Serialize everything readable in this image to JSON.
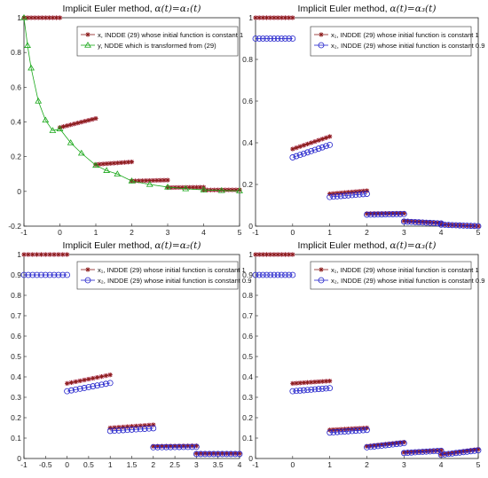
{
  "chart_data": [
    {
      "type": "scatter",
      "title_main": "Implicit Euler method, ",
      "title_math": "α(t)=α₁(t)",
      "xlim": [
        -1,
        5
      ],
      "ylim": [
        -0.2,
        1
      ],
      "xticks": [
        "-1",
        "0",
        "1",
        "2",
        "3",
        "4",
        "5"
      ],
      "yticks": [
        "-0.2",
        "0",
        "0.2",
        "0.4",
        "0.6",
        "0.8",
        "1"
      ],
      "legend_position": "top-right",
      "legend": [
        "x, INDDE (29) whose initial function is constant 1",
        "y, NDDE which is transformed from (29)"
      ],
      "series": [
        {
          "name": "x, INDDE (29) whose initial function is constant 1",
          "color": "#8b1a1a",
          "marker": "star",
          "segments": [
            {
              "x0": -1,
              "x1": 0,
              "y0": 1.0,
              "y1": 1.0
            },
            {
              "x0": 0,
              "x1": 1,
              "y0": 0.368,
              "y1": 0.42
            },
            {
              "x0": 1,
              "x1": 2,
              "y0": 0.155,
              "y1": 0.17
            },
            {
              "x0": 2,
              "x1": 3,
              "y0": 0.06,
              "y1": 0.065
            },
            {
              "x0": 3,
              "x1": 4,
              "y0": 0.022,
              "y1": 0.024
            },
            {
              "x0": 4,
              "x1": 5,
              "y0": 0.008,
              "y1": 0.009
            }
          ]
        },
        {
          "name": "y, NDDE which is transformed from (29)",
          "color": "#1aa81a",
          "marker": "triangle",
          "points": [
            [
              -1,
              1.0
            ],
            [
              -0.9,
              0.84
            ],
            [
              -0.8,
              0.71
            ],
            [
              -0.6,
              0.52
            ],
            [
              -0.4,
              0.41
            ],
            [
              -0.2,
              0.35
            ],
            [
              0,
              0.36
            ],
            [
              0.3,
              0.28
            ],
            [
              0.6,
              0.22
            ],
            [
              1,
              0.15
            ],
            [
              1.3,
              0.12
            ],
            [
              1.6,
              0.1
            ],
            [
              2,
              0.06
            ],
            [
              2.5,
              0.04
            ],
            [
              3,
              0.025
            ],
            [
              3.5,
              0.015
            ],
            [
              4,
              0.009
            ],
            [
              4.5,
              0.005
            ],
            [
              5,
              0.003
            ]
          ]
        }
      ]
    },
    {
      "type": "scatter",
      "title_main": "Implicit Euler method, ",
      "title_math": "α(t)=α₃(t)",
      "xlim": [
        -1,
        5
      ],
      "ylim": [
        0,
        1
      ],
      "xticks": [
        "-1",
        "0",
        "1",
        "2",
        "3",
        "4",
        "5"
      ],
      "yticks": [
        "0",
        "0.2",
        "0.4",
        "0.6",
        "0.8",
        "1"
      ],
      "legend_position": "top-right",
      "legend": [
        "x₁, INDDE (29) whose initial function is constant 1",
        "x₂, INDDE (29) whose  initial function is constant 0.9"
      ],
      "series": [
        {
          "name": "x₁, INDDE (29) whose initial function is constant 1",
          "color": "#8b1a1a",
          "marker": "star",
          "segments": [
            {
              "x0": -1,
              "x1": 0,
              "y0": 1.0,
              "y1": 1.0
            },
            {
              "x0": 0,
              "x1": 1,
              "y0": 0.37,
              "y1": 0.43
            },
            {
              "x0": 1,
              "x1": 2,
              "y0": 0.155,
              "y1": 0.17
            },
            {
              "x0": 2,
              "x1": 3,
              "y0": 0.06,
              "y1": 0.062
            },
            {
              "x0": 3,
              "x1": 4,
              "y0": 0.025,
              "y1": 0.015
            },
            {
              "x0": 4,
              "x1": 5,
              "y0": 0.008,
              "y1": 0.0
            }
          ]
        },
        {
          "name": "x₂, INDDE (29) whose  initial function is constant 0.9",
          "color": "#2222cc",
          "marker": "circle",
          "segments": [
            {
              "x0": -1,
              "x1": 0,
              "y0": 0.9,
              "y1": 0.9
            },
            {
              "x0": 0,
              "x1": 1,
              "y0": 0.33,
              "y1": 0.39
            },
            {
              "x0": 1,
              "x1": 2,
              "y0": 0.14,
              "y1": 0.155
            },
            {
              "x0": 2,
              "x1": 3,
              "y0": 0.055,
              "y1": 0.058
            },
            {
              "x0": 3,
              "x1": 4,
              "y0": 0.022,
              "y1": 0.013
            },
            {
              "x0": 4,
              "x1": 5,
              "y0": 0.007,
              "y1": 0.0
            }
          ]
        }
      ]
    },
    {
      "type": "scatter",
      "title_main": "Implicit Euler method, ",
      "title_math": "α(t)=α₂(t)",
      "xlim": [
        -1,
        4
      ],
      "ylim": [
        0,
        1
      ],
      "xticks": [
        "-1",
        "-0.5",
        "0",
        "0.5",
        "1",
        "1.5",
        "2",
        "2.5",
        "3",
        "3.5",
        "4"
      ],
      "yticks": [
        "0",
        "0.1",
        "0.2",
        "0.3",
        "0.4",
        "0.5",
        "0.6",
        "0.7",
        "0.8",
        "0.9",
        "1"
      ],
      "legend_position": "top-right",
      "legend": [
        "x₁, INDDE (29) whose initial function is constant 1",
        "x₂, INDDE (29) whose  initial function is constant 0.9"
      ],
      "series": [
        {
          "name": "x₁, INDDE (29) whose initial function is constant 1",
          "color": "#8b1a1a",
          "marker": "star",
          "segments": [
            {
              "x0": -1,
              "x1": 0,
              "y0": 1.0,
              "y1": 1.0
            },
            {
              "x0": 0,
              "x1": 1,
              "y0": 0.368,
              "y1": 0.41
            },
            {
              "x0": 1,
              "x1": 2,
              "y0": 0.15,
              "y1": 0.165
            },
            {
              "x0": 2,
              "x1": 3,
              "y0": 0.06,
              "y1": 0.062
            },
            {
              "x0": 3,
              "x1": 4,
              "y0": 0.025,
              "y1": 0.025
            }
          ]
        },
        {
          "name": "x₂, INDDE (29) whose  initial function is constant 0.9",
          "color": "#2222cc",
          "marker": "circle",
          "segments": [
            {
              "x0": -1,
              "x1": 0,
              "y0": 0.9,
              "y1": 0.9
            },
            {
              "x0": 0,
              "x1": 1,
              "y0": 0.33,
              "y1": 0.37
            },
            {
              "x0": 1,
              "x1": 2,
              "y0": 0.135,
              "y1": 0.148
            },
            {
              "x0": 2,
              "x1": 3,
              "y0": 0.055,
              "y1": 0.057
            },
            {
              "x0": 3,
              "x1": 4,
              "y0": 0.022,
              "y1": 0.022
            }
          ]
        }
      ]
    },
    {
      "type": "scatter",
      "title_main": "Implicit Euler method, ",
      "title_math": "α(t)=α₃(t)",
      "xlim": [
        -1,
        5
      ],
      "ylim": [
        0,
        1
      ],
      "xticks": [
        "-1",
        "0",
        "1",
        "2",
        "3",
        "4",
        "5"
      ],
      "yticks": [
        "0",
        "0.1",
        "0.2",
        "0.3",
        "0.4",
        "0.5",
        "0.6",
        "0.7",
        "0.8",
        "0.9",
        "1"
      ],
      "legend_position": "top-right",
      "legend": [
        "x₁, INDDE (29) whose initial function is constant 1",
        "x₂, INDDE (29) whose  initial function is constant 0.9"
      ],
      "series": [
        {
          "name": "x₁, INDDE (29) whose initial function is constant 1",
          "color": "#8b1a1a",
          "marker": "star",
          "segments": [
            {
              "x0": -1,
              "x1": 0,
              "y0": 1.0,
              "y1": 1.0
            },
            {
              "x0": 0,
              "x1": 1,
              "y0": 0.368,
              "y1": 0.38
            },
            {
              "x0": 1,
              "x1": 2,
              "y0": 0.14,
              "y1": 0.15
            },
            {
              "x0": 2,
              "x1": 3,
              "y0": 0.06,
              "y1": 0.08
            },
            {
              "x0": 3,
              "x1": 4,
              "y0": 0.03,
              "y1": 0.04
            },
            {
              "x0": 4,
              "x1": 5,
              "y0": 0.02,
              "y1": 0.045
            }
          ]
        },
        {
          "name": "x₂, INDDE (29) whose  initial function is constant 0.9",
          "color": "#2222cc",
          "marker": "circle",
          "segments": [
            {
              "x0": -1,
              "x1": 0,
              "y0": 0.9,
              "y1": 0.9
            },
            {
              "x0": 0,
              "x1": 1,
              "y0": 0.33,
              "y1": 0.345
            },
            {
              "x0": 1,
              "x1": 2,
              "y0": 0.127,
              "y1": 0.14
            },
            {
              "x0": 2,
              "x1": 3,
              "y0": 0.055,
              "y1": 0.075
            },
            {
              "x0": 3,
              "x1": 4,
              "y0": 0.027,
              "y1": 0.038
            },
            {
              "x0": 4,
              "x1": 5,
              "y0": 0.018,
              "y1": 0.04
            }
          ]
        }
      ]
    }
  ]
}
